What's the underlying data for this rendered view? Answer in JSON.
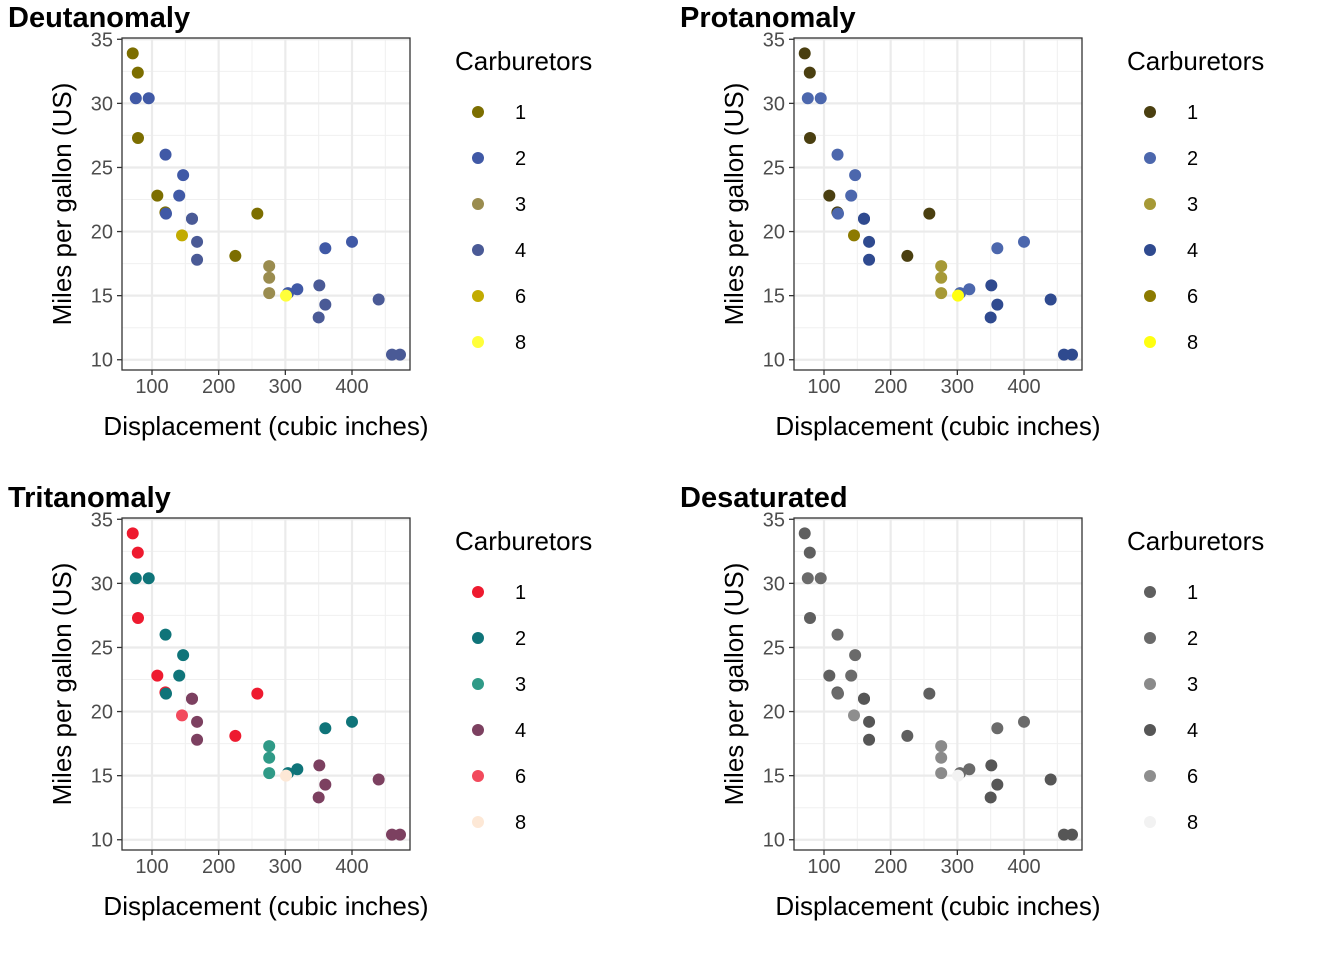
{
  "chart_data": [
    {
      "type": "scatter",
      "title": "Deutanomaly",
      "xlabel": "Displacement (cubic inches)",
      "ylabel": "Miles per gallon (US)",
      "xlim": [
        55,
        487
      ],
      "ylim": [
        9.2,
        35.1
      ],
      "xticks": [
        100,
        200,
        300,
        400
      ],
      "yticks": [
        10,
        15,
        20,
        25,
        30,
        35
      ],
      "grid": true,
      "legend": {
        "title": "Carburetors",
        "placement": "right",
        "items": [
          "1",
          "2",
          "3",
          "4",
          "6",
          "8"
        ],
        "colors": [
          "#7c6e00",
          "#4059a6",
          "#9a8c4f",
          "#4a5a96",
          "#c2ab00",
          "#ffff3a"
        ]
      }
    },
    {
      "type": "scatter",
      "title": "Protanomaly",
      "xlabel": "Displacement (cubic inches)",
      "ylabel": "Miles per gallon (US)",
      "xlim": [
        55,
        487
      ],
      "ylim": [
        9.2,
        35.1
      ],
      "xticks": [
        100,
        200,
        300,
        400
      ],
      "yticks": [
        10,
        15,
        20,
        25,
        30,
        35
      ],
      "grid": true,
      "legend": {
        "title": "Carburetors",
        "placement": "right",
        "items": [
          "1",
          "2",
          "3",
          "4",
          "6",
          "8"
        ],
        "colors": [
          "#4a3f10",
          "#4c67ad",
          "#a69936",
          "#2f4a8f",
          "#8c7a00",
          "#ffff10"
        ]
      }
    },
    {
      "type": "scatter",
      "title": "Tritanomaly",
      "xlabel": "Displacement (cubic inches)",
      "ylabel": "Miles per gallon (US)",
      "xlim": [
        55,
        487
      ],
      "ylim": [
        9.2,
        35.1
      ],
      "xticks": [
        100,
        200,
        300,
        400
      ],
      "yticks": [
        10,
        15,
        20,
        25,
        30,
        35
      ],
      "grid": true,
      "legend": {
        "title": "Carburetors",
        "placement": "right",
        "items": [
          "1",
          "2",
          "3",
          "4",
          "6",
          "8"
        ],
        "colors": [
          "#ee1a2f",
          "#0f7479",
          "#2f9a87",
          "#7c4060",
          "#f24a5c",
          "#fde8d6"
        ]
      }
    },
    {
      "type": "scatter",
      "title": "Desaturated",
      "xlabel": "Displacement (cubic inches)",
      "ylabel": "Miles per gallon (US)",
      "xlim": [
        55,
        487
      ],
      "ylim": [
        9.2,
        35.1
      ],
      "xticks": [
        100,
        200,
        300,
        400
      ],
      "yticks": [
        10,
        15,
        20,
        25,
        30,
        35
      ],
      "grid": true,
      "legend": {
        "title": "Carburetors",
        "placement": "right",
        "items": [
          "1",
          "2",
          "3",
          "4",
          "6",
          "8"
        ],
        "colors": [
          "#5f5f5f",
          "#6a6a6a",
          "#8a8a8a",
          "#565656",
          "#8e8e8e",
          "#f2f2f2"
        ]
      }
    }
  ],
  "points": [
    {
      "x": 160,
      "y": 21.0,
      "carb": "4"
    },
    {
      "x": 160,
      "y": 21.0,
      "carb": "4"
    },
    {
      "x": 108,
      "y": 22.8,
      "carb": "1"
    },
    {
      "x": 258,
      "y": 21.4,
      "carb": "1"
    },
    {
      "x": 360,
      "y": 18.7,
      "carb": "2"
    },
    {
      "x": 225,
      "y": 18.1,
      "carb": "1"
    },
    {
      "x": 360,
      "y": 14.3,
      "carb": "4"
    },
    {
      "x": 146.7,
      "y": 24.4,
      "carb": "2"
    },
    {
      "x": 140.8,
      "y": 22.8,
      "carb": "2"
    },
    {
      "x": 167.6,
      "y": 19.2,
      "carb": "4"
    },
    {
      "x": 167.6,
      "y": 17.8,
      "carb": "4"
    },
    {
      "x": 275.8,
      "y": 16.4,
      "carb": "3"
    },
    {
      "x": 275.8,
      "y": 17.3,
      "carb": "3"
    },
    {
      "x": 275.8,
      "y": 15.2,
      "carb": "3"
    },
    {
      "x": 472,
      "y": 10.4,
      "carb": "4"
    },
    {
      "x": 460,
      "y": 10.4,
      "carb": "4"
    },
    {
      "x": 440,
      "y": 14.7,
      "carb": "4"
    },
    {
      "x": 78.7,
      "y": 32.4,
      "carb": "1"
    },
    {
      "x": 75.7,
      "y": 30.4,
      "carb": "2"
    },
    {
      "x": 71.1,
      "y": 33.9,
      "carb": "1"
    },
    {
      "x": 120.1,
      "y": 21.5,
      "carb": "1"
    },
    {
      "x": 318,
      "y": 15.5,
      "carb": "2"
    },
    {
      "x": 304,
      "y": 15.2,
      "carb": "2"
    },
    {
      "x": 350,
      "y": 13.3,
      "carb": "4"
    },
    {
      "x": 400,
      "y": 19.2,
      "carb": "2"
    },
    {
      "x": 79,
      "y": 27.3,
      "carb": "1"
    },
    {
      "x": 120.3,
      "y": 26.0,
      "carb": "2"
    },
    {
      "x": 95.1,
      "y": 30.4,
      "carb": "2"
    },
    {
      "x": 351,
      "y": 15.8,
      "carb": "4"
    },
    {
      "x": 145,
      "y": 19.7,
      "carb": "6"
    },
    {
      "x": 301,
      "y": 15.0,
      "carb": "8"
    },
    {
      "x": 121,
      "y": 21.4,
      "carb": "2"
    }
  ]
}
